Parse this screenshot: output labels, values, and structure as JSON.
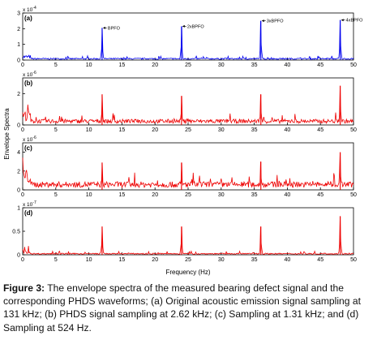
{
  "colors": {
    "blue": "#0000ee",
    "red": "#ee0000",
    "axis": "#000000"
  },
  "caption": {
    "label": "Figure 3:",
    "text": "The envelope spectra of the measured bearing defect signal and the corresponding PHDS waveforms; (a) Original acoustic emission signal sampling at 131 kHz; (b) PHDS signal sampling at 2.62 kHz; (c) Sampling at 1.31 kHz; and (d) Sampling at 524 Hz."
  },
  "chart_data": [
    {
      "type": "line",
      "panel_label": "(a)",
      "color": "blue",
      "ylim": [
        0,
        3
      ],
      "yticks": [
        "0",
        "1",
        "2",
        "3"
      ],
      "exponent": "x 10",
      "exponent_power": "-4",
      "xlim": [
        0,
        50
      ],
      "xticks": [
        "0",
        "5",
        "10",
        "15",
        "20",
        "25",
        "30",
        "35",
        "40",
        "45",
        "50"
      ],
      "peaks": [
        {
          "x": 12,
          "y": 2.05
        },
        {
          "x": 24,
          "y": 2.15
        },
        {
          "x": 36,
          "y": 2.5
        },
        {
          "x": 48,
          "y": 2.55
        }
      ],
      "noise_level": 0.12,
      "annotations": [
        {
          "text": "BPFO",
          "x": 12,
          "y": 2.05
        },
        {
          "text": "2xBPFO",
          "x": 24,
          "y": 2.15
        },
        {
          "text": "3xBPFO",
          "x": 36,
          "y": 2.5
        },
        {
          "text": "4xBPFO",
          "x": 48,
          "y": 2.55
        }
      ]
    },
    {
      "type": "line",
      "panel_label": "(b)",
      "color": "red",
      "ylim": [
        0,
        3
      ],
      "yticks": [
        "0",
        "2"
      ],
      "yticks_values": [
        0,
        2
      ],
      "exponent": "x 10",
      "exponent_power": "-6",
      "xlim": [
        0,
        50
      ],
      "xticks": [
        "0",
        "5",
        "10",
        "15",
        "20",
        "25",
        "30",
        "35",
        "40",
        "45",
        "50"
      ],
      "peaks": [
        {
          "x": 12,
          "y": 1.95
        },
        {
          "x": 24,
          "y": 1.85
        },
        {
          "x": 36,
          "y": 1.95
        },
        {
          "x": 48,
          "y": 2.5
        }
      ],
      "noise_level": 0.35
    },
    {
      "type": "line",
      "panel_label": "(c)",
      "color": "red",
      "ylim": [
        0,
        5
      ],
      "yticks": [
        "0",
        "2",
        "4"
      ],
      "yticks_values": [
        0,
        2,
        4
      ],
      "exponent": "x 10",
      "exponent_power": "-6",
      "xlim": [
        0,
        50
      ],
      "xticks": [
        "0",
        "5",
        "10",
        "15",
        "20",
        "25",
        "30",
        "35",
        "40",
        "45",
        "50"
      ],
      "peaks": [
        {
          "x": 12,
          "y": 2.9
        },
        {
          "x": 24,
          "y": 2.9
        },
        {
          "x": 36,
          "y": 3.0
        },
        {
          "x": 48,
          "y": 4.0
        }
      ],
      "noise_level": 0.5
    },
    {
      "type": "line",
      "panel_label": "(d)",
      "color": "red",
      "ylim": [
        0,
        1
      ],
      "yticks": [
        "0",
        "0.5",
        "1"
      ],
      "yticks_values": [
        0,
        0.5,
        1
      ],
      "exponent": "x 10",
      "exponent_power": "-7",
      "xlim": [
        0,
        50
      ],
      "xticks": [
        "0",
        "5",
        "10",
        "15",
        "20",
        "25",
        "30",
        "35",
        "40",
        "45",
        "50"
      ],
      "peaks": [
        {
          "x": 12,
          "y": 0.6
        },
        {
          "x": 24,
          "y": 0.6
        },
        {
          "x": 36,
          "y": 0.6
        },
        {
          "x": 48,
          "y": 0.82
        }
      ],
      "noise_level": 0.1
    }
  ],
  "axes": {
    "xlabel": "Frequency   (Hz)",
    "ylabel": "Envelope Spectra"
  }
}
